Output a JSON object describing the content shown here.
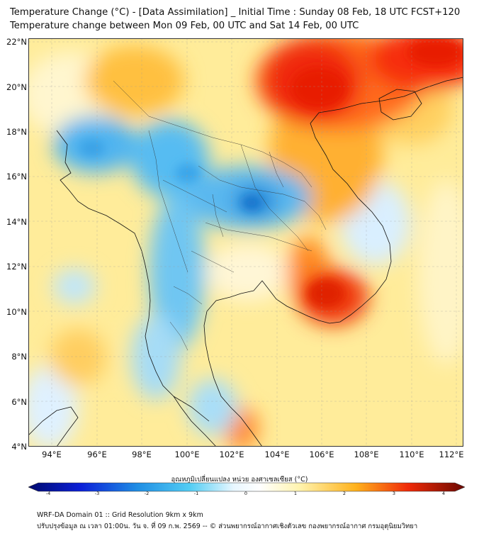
{
  "title": {
    "line1": "Temperature Change (°C) - [Data Assimilation] _ Initial Time : Sunday 08 Feb, 18 UTC FCST+120",
    "line2": "Temperature change between Mon 09 Feb, 00 UTC and Sat 14 Feb, 00 UTC"
  },
  "map": {
    "lat_labels": [
      "22°N",
      "20°N",
      "18°N",
      "16°N",
      "14°N",
      "12°N",
      "10°N",
      "8°N",
      "6°N",
      "4°N"
    ],
    "lon_labels": [
      "94°E",
      "96°E",
      "98°E",
      "100°E",
      "102°E",
      "104°E",
      "106°E",
      "108°E",
      "110°E",
      "112°E"
    ],
    "extent": {
      "lon_min": 93,
      "lon_max": 112.3,
      "lat_min": 4,
      "lat_max": 22.2
    },
    "field_note_colors": {
      "cold": "#1e8fe0",
      "neutral": "#ffffff",
      "warm": "#ff3a00"
    }
  },
  "colorbar": {
    "title": "อุณหภูมิเปลี่ยนแปลง หน่วย องศาเซลเซียส (°C)",
    "ticks": [
      "-4",
      "-3",
      "-2",
      "-1",
      "0",
      "1",
      "2",
      "3",
      "4"
    ],
    "min": -4,
    "max": 4
  },
  "footer": {
    "line1": "WRF-DA Domain 01 :: Grid Resolution 9km x 9km",
    "line2": "ปรับปรุงข้อมูล ณ เวลา 01:00น. วัน จ. ที่ 09 ก.พ. 2569 -- © ส่วนพยากรณ์อากาศเชิงตัวเลข กองพยากรณ์อากาศ กรมอุตุนิยมวิทยา"
  }
}
